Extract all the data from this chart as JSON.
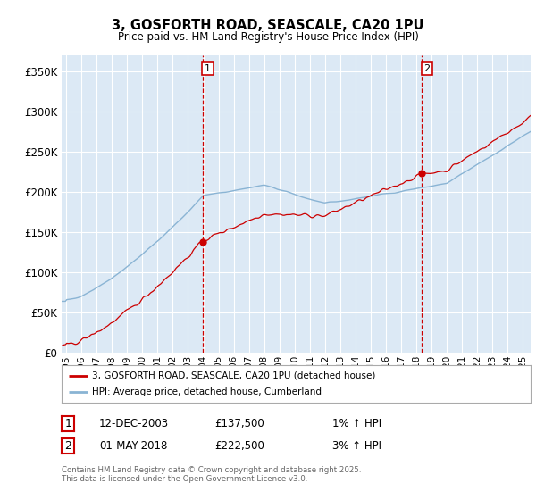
{
  "title_line1": "3, GOSFORTH ROAD, SEASCALE, CA20 1PU",
  "title_line2": "Price paid vs. HM Land Registry's House Price Index (HPI)",
  "ylabel_ticks": [
    "£0",
    "£50K",
    "£100K",
    "£150K",
    "£200K",
    "£250K",
    "£300K",
    "£350K"
  ],
  "y_values": [
    0,
    50000,
    100000,
    150000,
    200000,
    250000,
    300000,
    350000
  ],
  "ylim": [
    0,
    370000
  ],
  "xlim_start": 1994.7,
  "xlim_end": 2025.5,
  "background_color": "#dce9f5",
  "grid_color": "#ffffff",
  "red_line_color": "#cc0000",
  "blue_line_color": "#8ab4d4",
  "vline_color": "#cc0000",
  "marker1_x": 2003.95,
  "marker1_y": 137500,
  "marker1_label": "1",
  "marker1_date": "12-DEC-2003",
  "marker1_price": "£137,500",
  "marker1_hpi": "1% ↑ HPI",
  "marker2_x": 2018.33,
  "marker2_y": 222500,
  "marker2_label": "2",
  "marker2_date": "01-MAY-2018",
  "marker2_price": "£222,500",
  "marker2_hpi": "3% ↑ HPI",
  "legend_line1": "3, GOSFORTH ROAD, SEASCALE, CA20 1PU (detached house)",
  "legend_line2": "HPI: Average price, detached house, Cumberland",
  "footer_text": "Contains HM Land Registry data © Crown copyright and database right 2025.\nThis data is licensed under the Open Government Licence v3.0.",
  "x_tick_years": [
    1995,
    1996,
    1997,
    1998,
    1999,
    2000,
    2001,
    2002,
    2003,
    2004,
    2005,
    2006,
    2007,
    2008,
    2009,
    2010,
    2011,
    2012,
    2013,
    2014,
    2015,
    2016,
    2017,
    2018,
    2019,
    2020,
    2021,
    2022,
    2023,
    2024,
    2025
  ]
}
